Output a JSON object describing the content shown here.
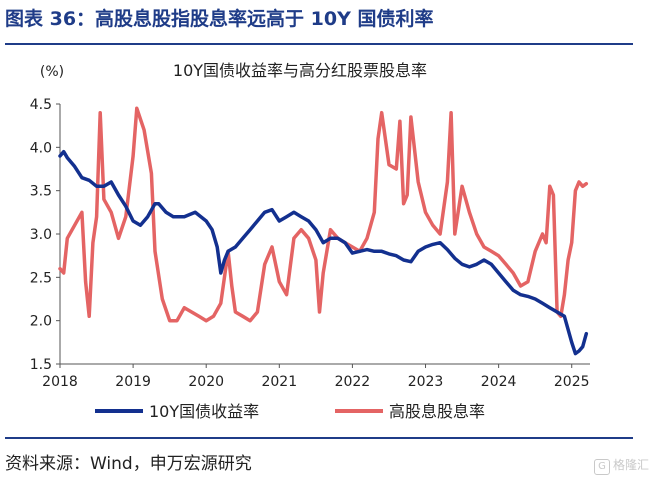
{
  "figure": {
    "title": "图表 36：高股息股指股息率远高于 10Y 国债利率",
    "source": "资料来源：Wind，申万宏源研究",
    "watermark": "格隆汇"
  },
  "colors": {
    "title": "#1f3c88",
    "bond": "#13308f",
    "dividend": "#e46464"
  },
  "chart_data": {
    "type": "line",
    "title": "10Y国债收益率与高分红股票股息率",
    "ylabel": "(%)",
    "ylim": [
      1.5,
      4.5
    ],
    "xlim": [
      2018.0,
      2025.25
    ],
    "x_ticks": [
      2018,
      2019,
      2020,
      2021,
      2022,
      2023,
      2024,
      2025
    ],
    "y_ticks": [
      1.5,
      2.0,
      2.5,
      3.0,
      3.5,
      4.0,
      4.5
    ],
    "y_tick_labels": [
      "1.5",
      "2.0",
      "2.5",
      "3.0",
      "3.5",
      "4.0",
      "4.5"
    ],
    "grid": false,
    "legend_position": "bottom",
    "series": [
      {
        "name": "10Y国债收益率",
        "color": "#13308f",
        "x": [
          2018.0,
          2018.05,
          2018.1,
          2018.2,
          2018.3,
          2018.4,
          2018.5,
          2018.6,
          2018.7,
          2018.8,
          2018.9,
          2019.0,
          2019.1,
          2019.2,
          2019.3,
          2019.35,
          2019.45,
          2019.55,
          2019.7,
          2019.85,
          2020.0,
          2020.08,
          2020.15,
          2020.2,
          2020.25,
          2020.3,
          2020.4,
          2020.5,
          2020.6,
          2020.7,
          2020.8,
          2020.9,
          2021.0,
          2021.1,
          2021.2,
          2021.3,
          2021.4,
          2021.5,
          2021.6,
          2021.7,
          2021.8,
          2021.9,
          2022.0,
          2022.1,
          2022.2,
          2022.3,
          2022.4,
          2022.5,
          2022.6,
          2022.7,
          2022.8,
          2022.9,
          2023.0,
          2023.1,
          2023.2,
          2023.3,
          2023.4,
          2023.5,
          2023.6,
          2023.7,
          2023.8,
          2023.9,
          2024.0,
          2024.1,
          2024.2,
          2024.3,
          2024.4,
          2024.5,
          2024.6,
          2024.7,
          2024.8,
          2024.9,
          2025.0,
          2025.05,
          2025.1,
          2025.15,
          2025.2
        ],
        "values": [
          3.9,
          3.95,
          3.88,
          3.78,
          3.65,
          3.62,
          3.55,
          3.55,
          3.6,
          3.45,
          3.32,
          3.15,
          3.1,
          3.2,
          3.35,
          3.35,
          3.25,
          3.2,
          3.2,
          3.25,
          3.15,
          3.05,
          2.85,
          2.55,
          2.7,
          2.8,
          2.85,
          2.95,
          3.05,
          3.15,
          3.25,
          3.28,
          3.15,
          3.2,
          3.25,
          3.2,
          3.15,
          3.05,
          2.9,
          2.95,
          2.95,
          2.9,
          2.78,
          2.8,
          2.82,
          2.8,
          2.8,
          2.77,
          2.75,
          2.7,
          2.68,
          2.8,
          2.85,
          2.88,
          2.9,
          2.82,
          2.72,
          2.65,
          2.62,
          2.65,
          2.7,
          2.65,
          2.55,
          2.45,
          2.35,
          2.3,
          2.28,
          2.25,
          2.2,
          2.15,
          2.1,
          2.05,
          1.75,
          1.62,
          1.65,
          1.7,
          1.85
        ]
      },
      {
        "name": "高股息股息率",
        "color": "#e46464",
        "x": [
          2018.0,
          2018.05,
          2018.1,
          2018.2,
          2018.3,
          2018.35,
          2018.4,
          2018.45,
          2018.5,
          2018.55,
          2018.6,
          2018.7,
          2018.8,
          2018.9,
          2019.0,
          2019.05,
          2019.15,
          2019.25,
          2019.3,
          2019.4,
          2019.5,
          2019.6,
          2019.7,
          2019.8,
          2019.9,
          2020.0,
          2020.1,
          2020.2,
          2020.3,
          2020.35,
          2020.4,
          2020.5,
          2020.6,
          2020.7,
          2020.8,
          2020.9,
          2021.0,
          2021.1,
          2021.2,
          2021.3,
          2021.4,
          2021.5,
          2021.55,
          2021.6,
          2021.7,
          2021.8,
          2021.9,
          2022.0,
          2022.1,
          2022.2,
          2022.3,
          2022.35,
          2022.4,
          2022.5,
          2022.6,
          2022.65,
          2022.7,
          2022.75,
          2022.8,
          2022.9,
          2023.0,
          2023.1,
          2023.2,
          2023.3,
          2023.35,
          2023.4,
          2023.5,
          2023.6,
          2023.7,
          2023.8,
          2023.9,
          2024.0,
          2024.1,
          2024.2,
          2024.3,
          2024.4,
          2024.5,
          2024.6,
          2024.65,
          2024.7,
          2024.75,
          2024.8,
          2024.85,
          2024.9,
          2024.95,
          2025.0,
          2025.05,
          2025.1,
          2025.15,
          2025.2
        ],
        "values": [
          2.6,
          2.55,
          2.95,
          3.1,
          3.25,
          2.45,
          2.05,
          2.9,
          3.2,
          4.4,
          3.4,
          3.25,
          2.95,
          3.2,
          3.9,
          4.45,
          4.2,
          3.7,
          2.8,
          2.25,
          2.0,
          2.0,
          2.15,
          2.1,
          2.05,
          2.0,
          2.05,
          2.2,
          2.8,
          2.4,
          2.1,
          2.05,
          2.0,
          2.1,
          2.65,
          2.85,
          2.45,
          2.3,
          2.95,
          3.05,
          2.95,
          2.7,
          2.1,
          2.55,
          3.05,
          2.95,
          2.9,
          2.85,
          2.8,
          2.95,
          3.25,
          4.1,
          4.4,
          3.8,
          3.75,
          4.3,
          3.35,
          3.45,
          4.35,
          3.6,
          3.25,
          3.1,
          3.0,
          3.6,
          4.4,
          3.0,
          3.55,
          3.25,
          3.0,
          2.85,
          2.8,
          2.75,
          2.65,
          2.55,
          2.4,
          2.45,
          2.8,
          3.0,
          2.9,
          3.55,
          3.45,
          2.1,
          2.05,
          2.3,
          2.7,
          2.9,
          3.5,
          3.6,
          3.55,
          3.58
        ]
      }
    ]
  }
}
